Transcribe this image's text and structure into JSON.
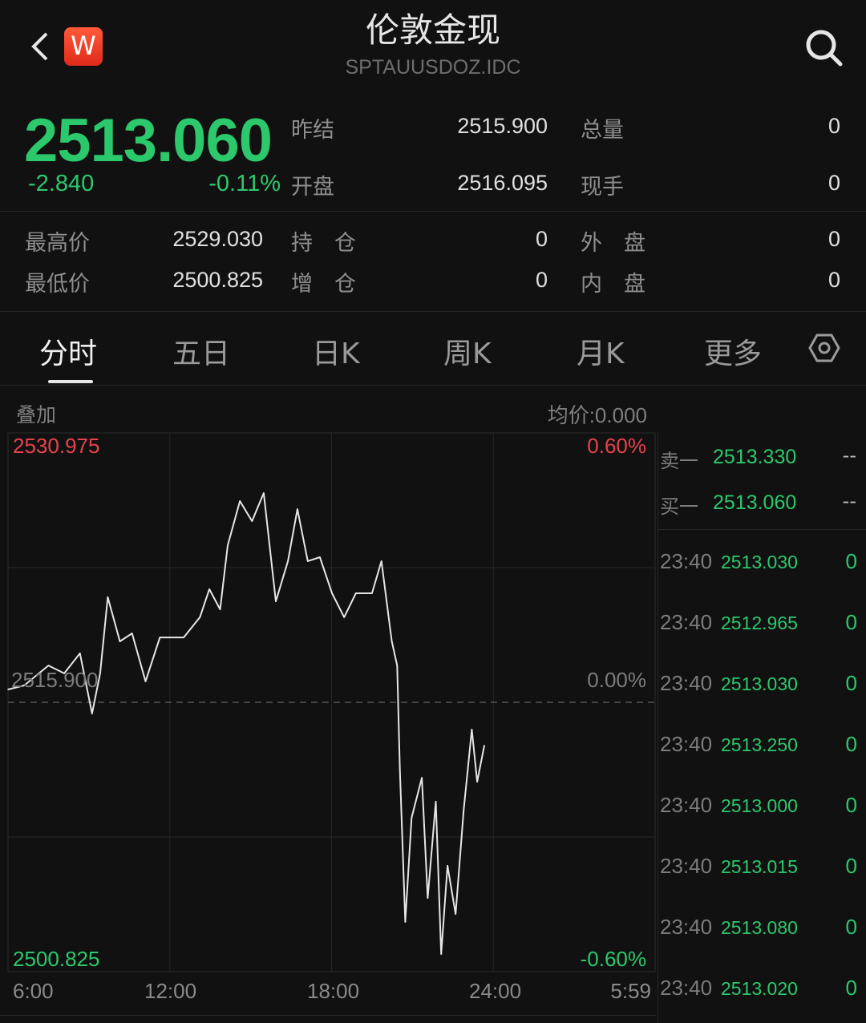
{
  "header": {
    "title": "伦敦金现",
    "symbol": "SPTAUUSDOZ.IDC",
    "logo": "W",
    "back_icon": "chevron-left-icon",
    "search_icon": "search-icon"
  },
  "quote": {
    "price": "2513.060",
    "change": "-2.840",
    "change_pct": "-0.11%",
    "fields": [
      {
        "label": "昨结",
        "value": "2515.900"
      },
      {
        "label": "总量",
        "value": "0"
      },
      {
        "label": "开盘",
        "value": "2516.095"
      },
      {
        "label": "现手",
        "value": "0"
      },
      {
        "label": "最高价",
        "value": "2529.030"
      },
      {
        "label": "持　仓",
        "value": "0"
      },
      {
        "label": "外　盘",
        "value": "0"
      },
      {
        "label": "最低价",
        "value": "2500.825"
      },
      {
        "label": "增　仓",
        "value": "0"
      },
      {
        "label": "内　盘",
        "value": "0"
      }
    ]
  },
  "tabs": [
    {
      "label": "分时",
      "active": true
    },
    {
      "label": "五日"
    },
    {
      "label": "日K"
    },
    {
      "label": "周K"
    },
    {
      "label": "月K"
    },
    {
      "label": "更多"
    }
  ],
  "settings_icon": "settings-hexagon-icon",
  "chart_header": {
    "overlay": "叠加",
    "avg_price": "均价:0.000"
  },
  "colors": {
    "up": "#e8424c",
    "down": "#2cc86c",
    "line": "#e6e6e6"
  },
  "chart_data": {
    "type": "line",
    "y_max_label": "2530.975",
    "y_min_label": "2500.825",
    "y_base_label": "2515.900",
    "pct_max_label": "0.60%",
    "pct_base_label": "0.00%",
    "pct_min_label": "-0.60%",
    "ylim": [
      2500.825,
      2530.975
    ],
    "base": 2515.9,
    "x_ticks": [
      "6:00",
      "12:00",
      "18:00",
      "24:00",
      "5:59"
    ],
    "xlim": [
      "6:00",
      "5:59"
    ],
    "x": [
      "6:00",
      "6:36",
      "7:30",
      "8:05",
      "8:40",
      "9:07",
      "9:25",
      "9:42",
      "10:09",
      "10:36",
      "11:06",
      "11:38",
      "12:31",
      "13:07",
      "13:28",
      "13:52",
      "14:09",
      "14:36",
      "15:03",
      "15:29",
      "15:56",
      "16:23",
      "16:44",
      "17:07",
      "17:34",
      "18:01",
      "18:28",
      "18:54",
      "19:30",
      "19:51",
      "20:14",
      "20:26",
      "20:32",
      "20:44",
      "20:58",
      "21:21",
      "21:34",
      "21:52",
      "22:04",
      "22:18",
      "22:36",
      "22:54",
      "23:12",
      "23:24",
      "23:40"
    ],
    "y": [
      2516.62,
      2516.84,
      2517.96,
      2517.52,
      2518.64,
      2515.27,
      2517.52,
      2521.78,
      2519.31,
      2519.76,
      2517.07,
      2519.53,
      2519.53,
      2520.66,
      2522.23,
      2521.1,
      2524.69,
      2527.16,
      2526.04,
      2527.61,
      2521.55,
      2523.8,
      2526.71,
      2523.8,
      2524.02,
      2522.0,
      2520.66,
      2522.0,
      2522.0,
      2523.8,
      2519.31,
      2517.96,
      2512.13,
      2503.61,
      2509.44,
      2511.68,
      2504.95,
      2510.34,
      2501.81,
      2506.75,
      2504.05,
      2509.89,
      2514.38,
      2511.46,
      2513.48
    ],
    "grid": true
  },
  "order_book": {
    "asks": [
      {
        "label": "卖一",
        "price": "2513.330",
        "vol": "--"
      }
    ],
    "bids": [
      {
        "label": "买一",
        "price": "2513.060",
        "vol": "--"
      }
    ],
    "trades": [
      {
        "time": "23:40",
        "price": "2513.030",
        "vol": "0"
      },
      {
        "time": "23:40",
        "price": "2512.965",
        "vol": "0"
      },
      {
        "time": "23:40",
        "price": "2513.030",
        "vol": "0"
      },
      {
        "time": "23:40",
        "price": "2513.250",
        "vol": "0"
      },
      {
        "time": "23:40",
        "price": "2513.000",
        "vol": "0"
      },
      {
        "time": "23:40",
        "price": "2513.015",
        "vol": "0"
      },
      {
        "time": "23:40",
        "price": "2513.080",
        "vol": "0"
      },
      {
        "time": "23:40",
        "price": "2513.020",
        "vol": "0"
      }
    ]
  }
}
